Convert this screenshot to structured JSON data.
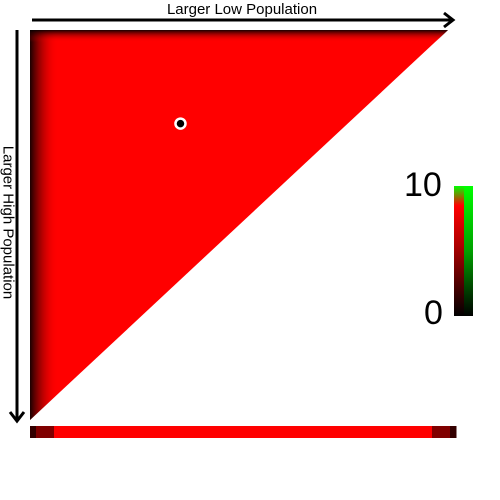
{
  "chart_data": {
    "type": "heatmap",
    "title": "",
    "xlabel": "Larger Low Population",
    "ylabel": "Larger High Population",
    "region": "upper-left triangle",
    "colorscale": {
      "min": 0,
      "max": 10,
      "min_label": "0",
      "max_label": "10",
      "colors": [
        "#000000",
        "#ff0000",
        "#00ff00"
      ]
    },
    "fill_value": 10,
    "marker_point": {
      "x_fraction": 0.36,
      "y_fraction": 0.24
    },
    "bottom_strip": {
      "values": [
        2,
        5,
        10,
        10,
        10,
        10,
        10,
        5,
        2
      ]
    },
    "colors": {
      "high": "#ff0000",
      "low": "#000000",
      "top": "#00ff00",
      "background": "#ffffff"
    }
  }
}
